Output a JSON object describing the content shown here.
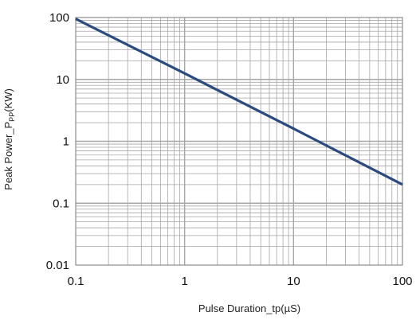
{
  "chart_data": {
    "type": "line",
    "title": "",
    "xlabel": "Pulse Duration_tp(µS)",
    "ylabel_main": "Peak Power_P",
    "ylabel_sub": "PP",
    "ylabel_unit": "(KW)",
    "x_scale": "log",
    "y_scale": "log",
    "xlim": [
      0.1,
      100
    ],
    "ylim": [
      0.01,
      100
    ],
    "x_ticks": [
      0.1,
      1,
      10,
      100
    ],
    "x_tick_labels": [
      "0.1",
      "1",
      "10",
      "100"
    ],
    "y_ticks": [
      0.01,
      0.1,
      1,
      10,
      100
    ],
    "y_tick_labels": [
      "0.01",
      "0.1",
      "1",
      "10",
      "100"
    ],
    "grid": true,
    "line_color": "#2b4a7e",
    "grid_color": "#a6a6a6",
    "series": [
      {
        "x": [
          0.1,
          1,
          10,
          100
        ],
        "y": [
          95,
          12.5,
          1.6,
          0.2
        ]
      }
    ]
  }
}
